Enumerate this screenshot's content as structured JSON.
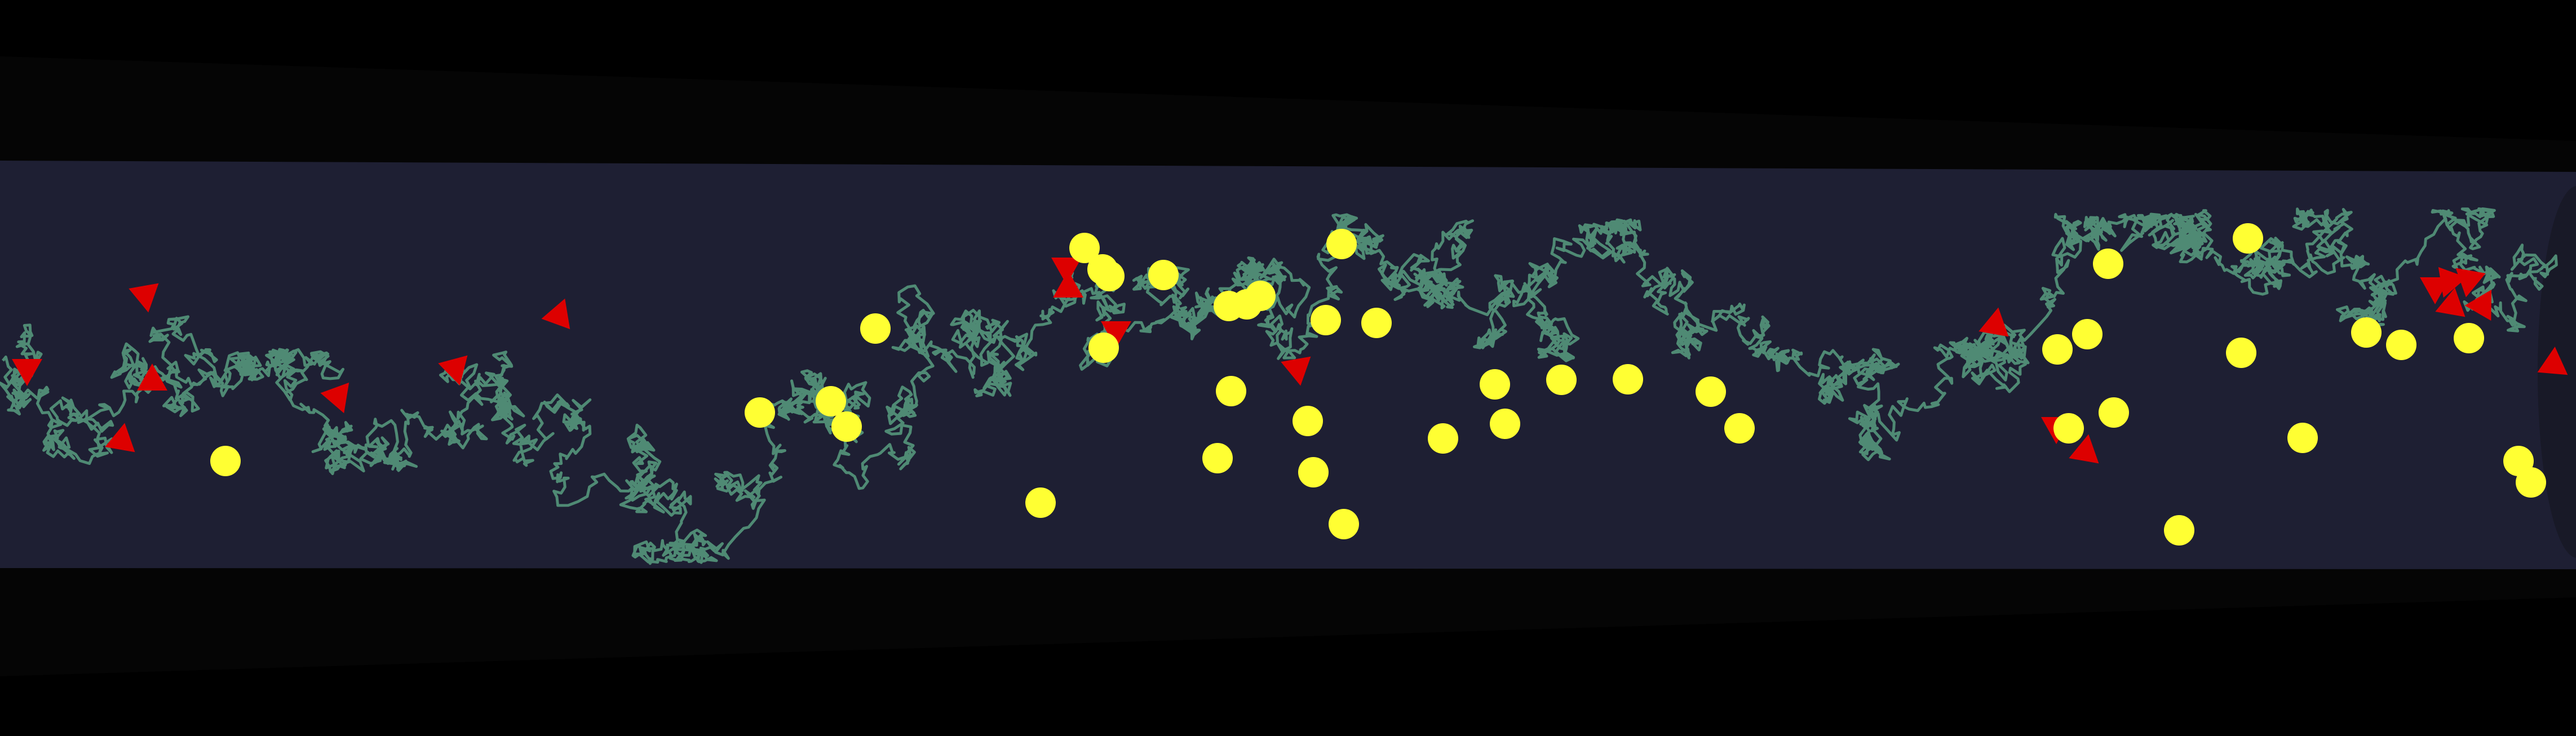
{
  "scene": {
    "background_color": "#000000",
    "tube_color": "#1E1F33",
    "path_color": "#4F8A74",
    "circle_marker_color": "#FFFF33",
    "triangle_marker_color": "#DD0000",
    "circle_marker_count": 43,
    "triangle_marker_count": 20
  }
}
